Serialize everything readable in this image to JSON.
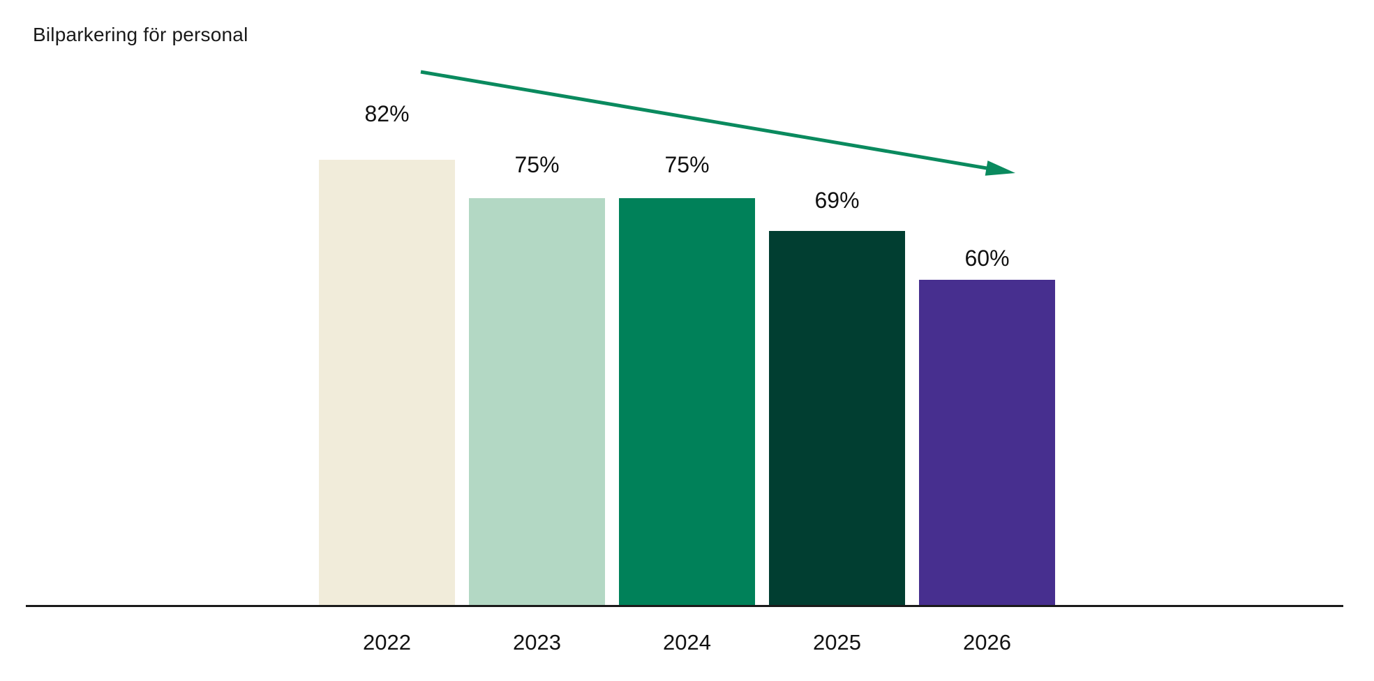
{
  "title": "Bilparkering för personal",
  "chart_data": {
    "type": "bar",
    "title": "Bilparkering för personal",
    "categories": [
      "2022",
      "2023",
      "2024",
      "2025",
      "2026"
    ],
    "values": [
      82,
      75,
      75,
      69,
      60
    ],
    "value_labels": [
      "82%",
      "75%",
      "75%",
      "69%",
      "60%"
    ],
    "xlabel": "",
    "ylabel": "",
    "ylim": [
      0,
      100
    ],
    "unit": "%",
    "grid": false,
    "legend": null,
    "bar_colors": [
      "#F1ECDA",
      "#B3D8C4",
      "#008159",
      "#013E31",
      "#472F8F"
    ],
    "annotations": [
      {
        "type": "arrow",
        "meaning": "decreasing trend over years",
        "direction": "down-right",
        "color": "#0A8A5E"
      }
    ]
  },
  "colors": {
    "background": "#FFFFFF",
    "text": "#111111",
    "axis": "#1A1A1A",
    "arrow": "#0A8A5E"
  }
}
